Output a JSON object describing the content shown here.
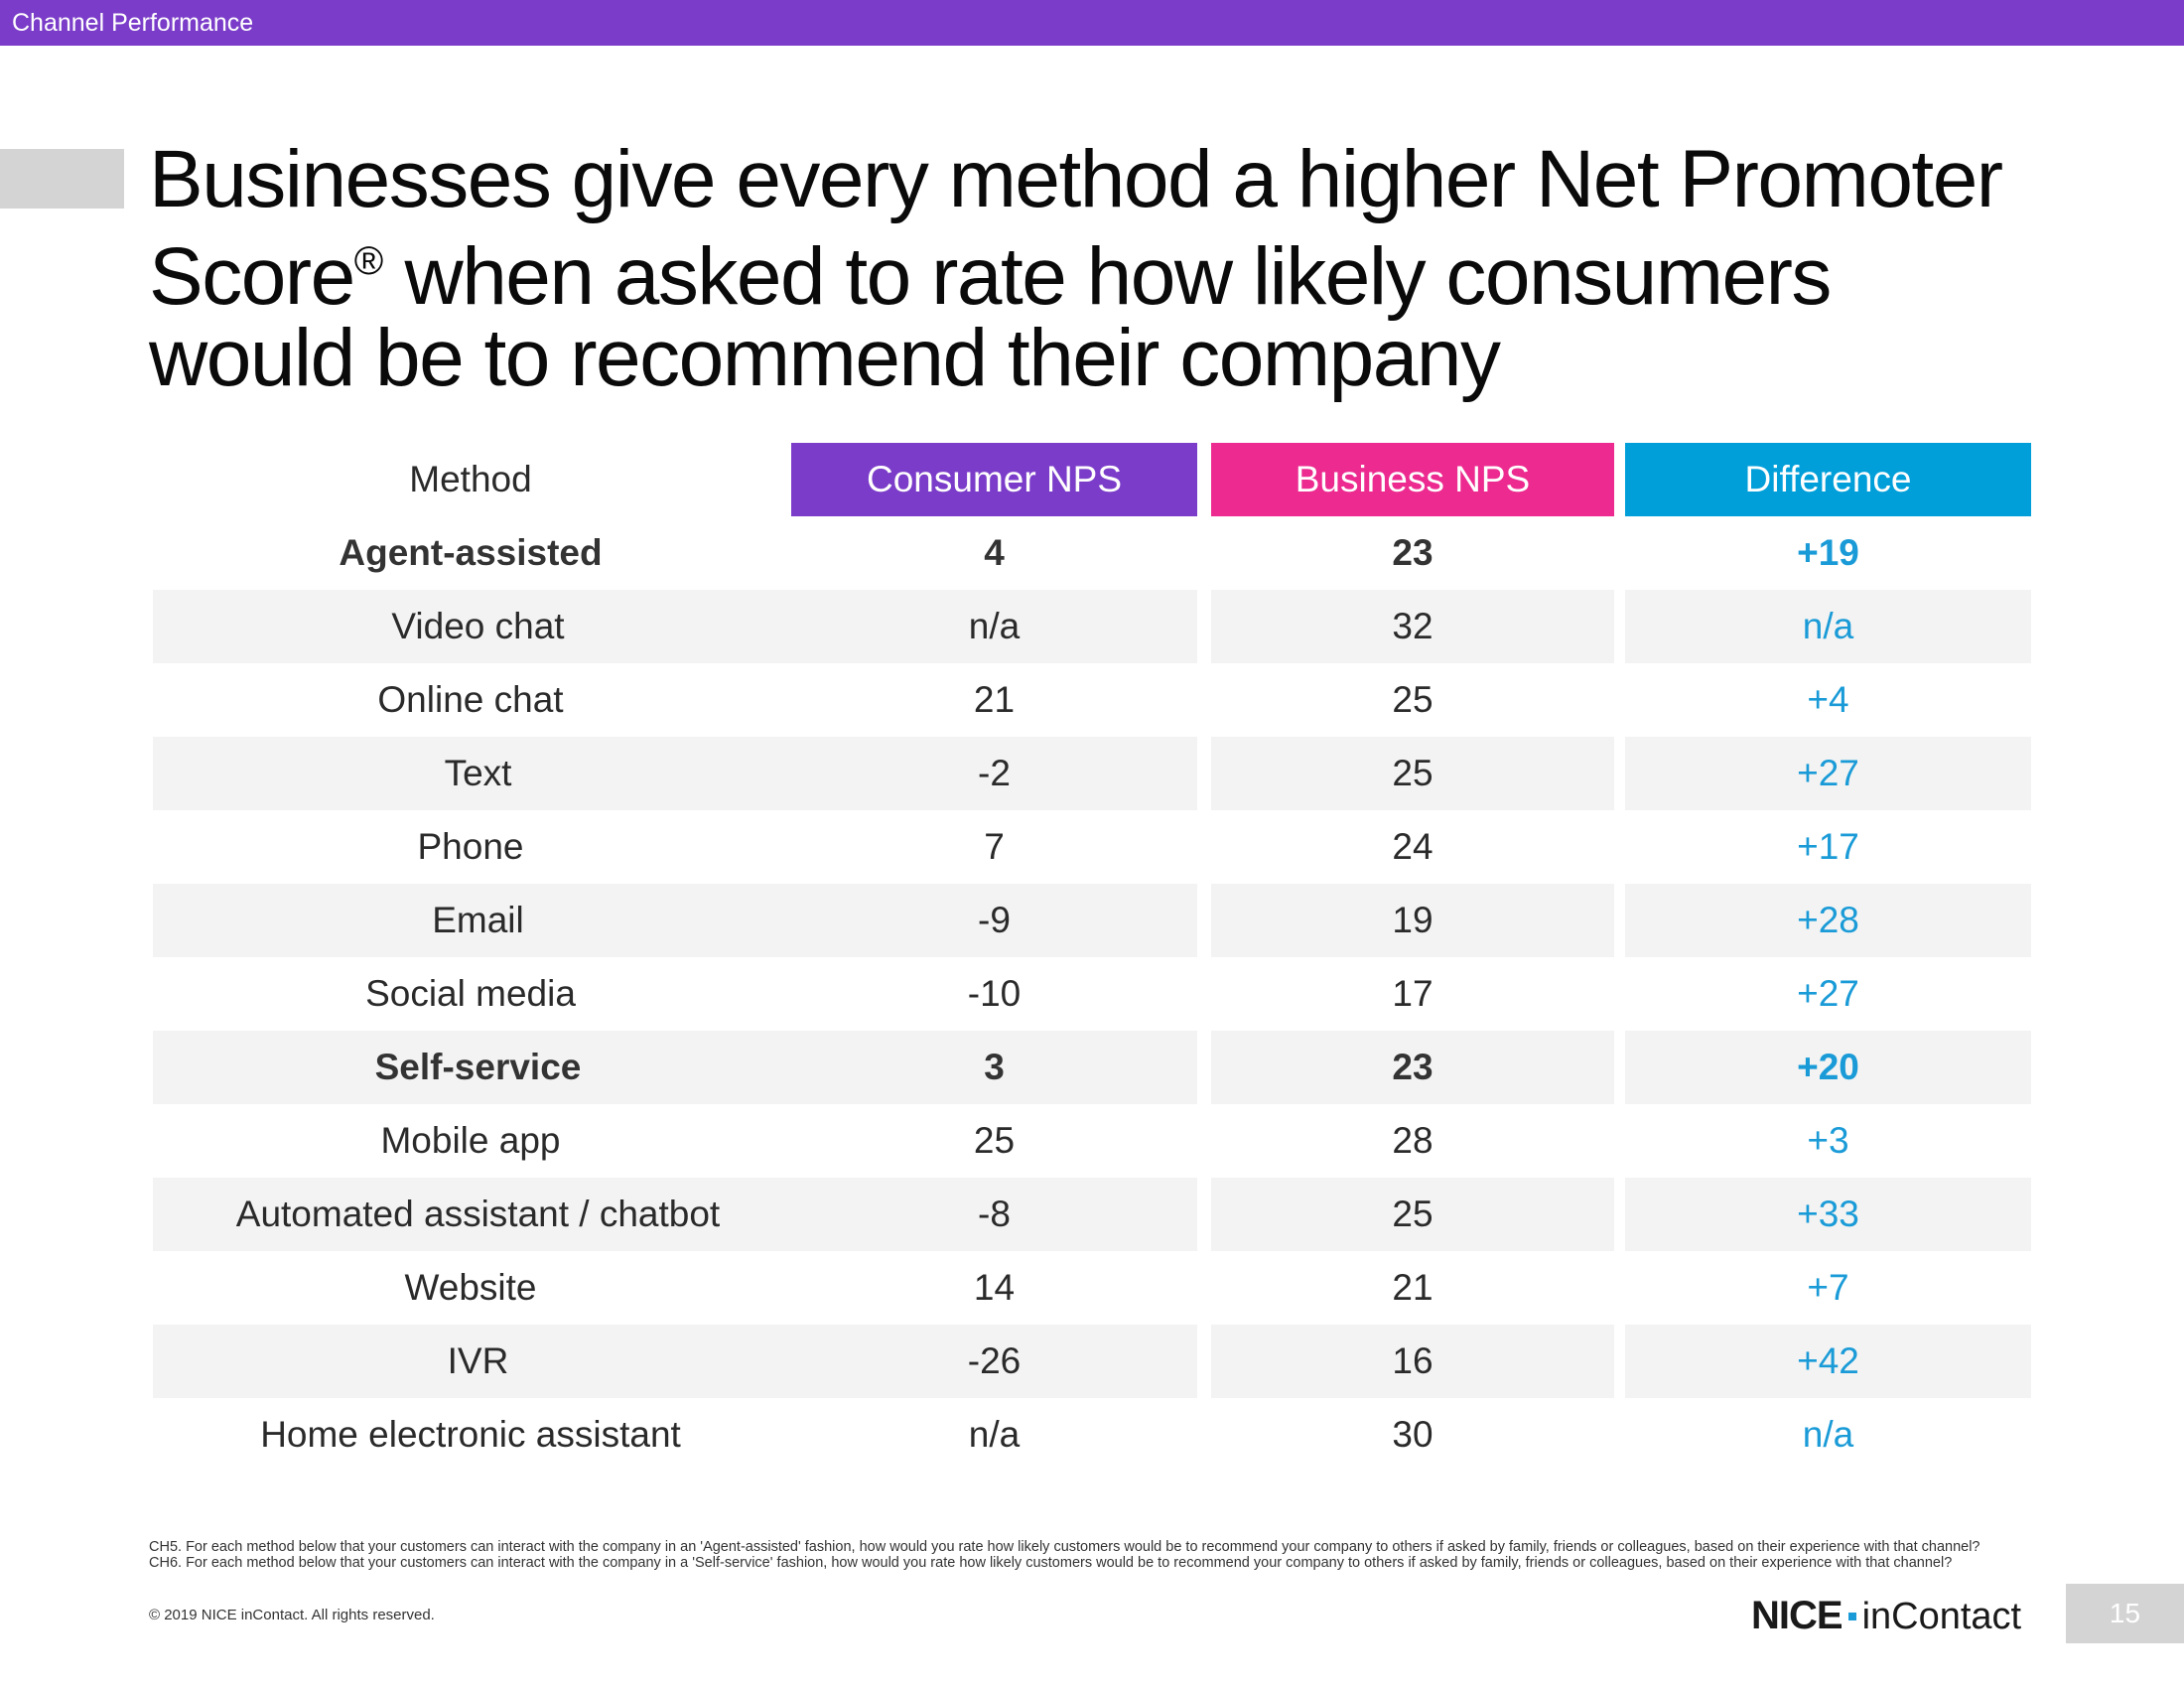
{
  "header": {
    "section_label": "Channel Performance"
  },
  "title": {
    "line1": "Businesses give every method a higher Net Promoter",
    "line2_start": "Score",
    "registered": "®",
    "line2_end": " when asked to rate how likely consumers",
    "line3": "would be to recommend their company"
  },
  "table": {
    "columns": [
      "Method",
      "Consumer NPS",
      "Business NPS",
      "Difference"
    ],
    "rows": [
      {
        "method": "Agent-assisted",
        "consumer": "4",
        "business": "23",
        "difference": "+19"
      },
      {
        "method": "Video chat",
        "consumer": "n/a",
        "business": "32",
        "difference": "n/a"
      },
      {
        "method": "Online  chat",
        "consumer": "21",
        "business": "25",
        "difference": "+4"
      },
      {
        "method": "Text",
        "consumer": "-2",
        "business": "25",
        "difference": "+27"
      },
      {
        "method": "Phone",
        "consumer": "7",
        "business": "24",
        "difference": "+17"
      },
      {
        "method": "Email",
        "consumer": "-9",
        "business": "19",
        "difference": "+28"
      },
      {
        "method": "Social media",
        "consumer": "-10",
        "business": "17",
        "difference": "+27"
      },
      {
        "method": "Self-service",
        "consumer": "3",
        "business": "23",
        "difference": "+20"
      },
      {
        "method": "Mobile app",
        "consumer": "25",
        "business": "28",
        "difference": "+3"
      },
      {
        "method": "Automated assistant / chatbot",
        "consumer": "-8",
        "business": "25",
        "difference": "+33"
      },
      {
        "method": "Website",
        "consumer": "14",
        "business": "21",
        "difference": "+7"
      },
      {
        "method": "IVR",
        "consumer": "-26",
        "business": "16",
        "difference": "+42"
      },
      {
        "method": "Home electronic assistant",
        "consumer": "n/a",
        "business": "30",
        "difference": "n/a"
      }
    ]
  },
  "footer": {
    "footnote": "CH5. For each method below that your customers can interact with the company in an 'Agent-assisted' fashion, how would you rate how likely customers would be to recommend your company to others if asked by family, friends or colleagues, based on their experience with that channel?  CH6. For each method below that your customers can interact with the company in a 'Self-service' fashion, how would you rate how likely customers would be to recommend your company to others if asked by family, friends or colleagues, based on their experience with that channel?",
    "copyright": "© 2019 NICE inContact. All rights reserved.",
    "logo_nice": "NICE",
    "logo_incontact": "inContact",
    "page_number": "15"
  },
  "colors": {
    "purple": "#7b3dc9",
    "magenta": "#ec2a8f",
    "blue": "#009fda",
    "difference_text": "#1a9bd7",
    "row_shade": "#f3f3f3"
  }
}
